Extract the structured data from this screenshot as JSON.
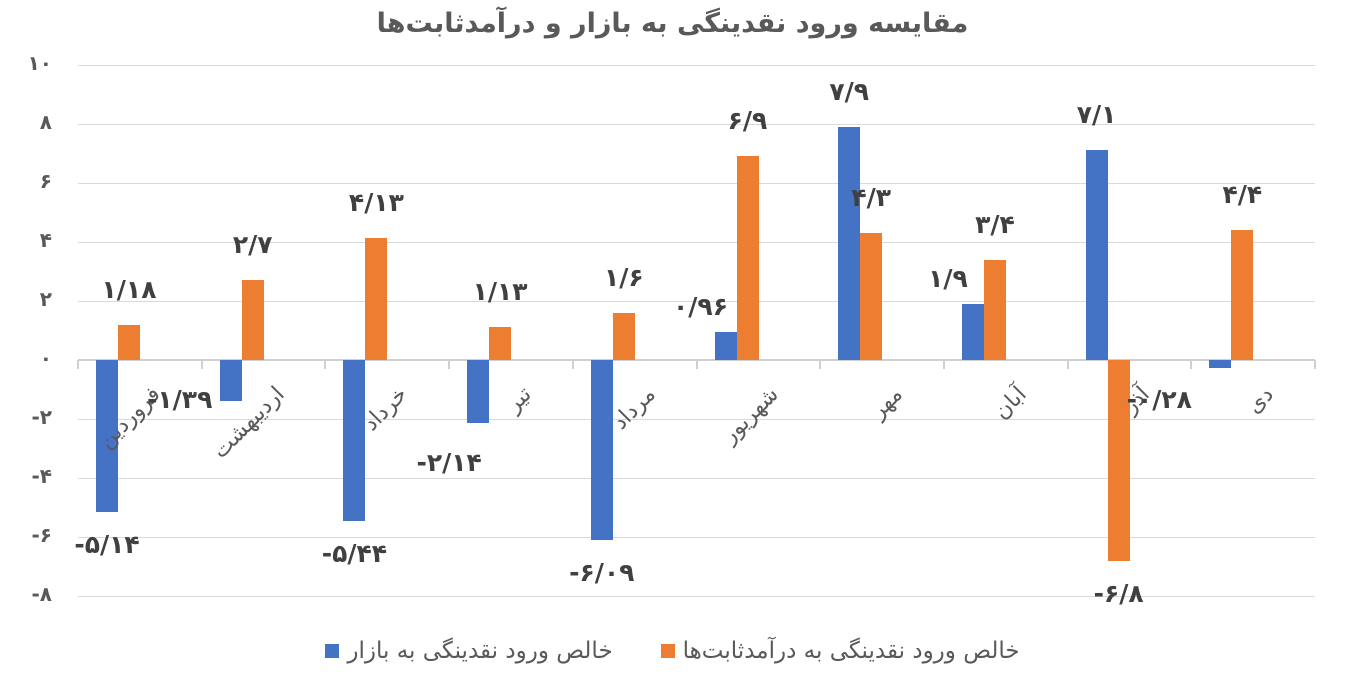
{
  "title": "مقایسه ورود نقدینگی به بازار و درآمدثابت‌ها",
  "y_axis": {
    "ticks": [
      {
        "value": 10,
        "label": "۱۰"
      },
      {
        "value": 8,
        "label": "۸"
      },
      {
        "value": 6,
        "label": "۶"
      },
      {
        "value": 4,
        "label": "۴"
      },
      {
        "value": 2,
        "label": "۲"
      },
      {
        "value": 0,
        "label": "۰"
      },
      {
        "value": -2,
        "label": "-۲"
      },
      {
        "value": -4,
        "label": "-۴"
      },
      {
        "value": -6,
        "label": "-۶"
      },
      {
        "value": -8,
        "label": "-۸"
      }
    ]
  },
  "legend": {
    "items": [
      {
        "label": "خالص ورود نقدینگی به بازار",
        "color": "#4472C4"
      },
      {
        "label": "خالص ورود نقدینگی به درآمدثابت‌ها",
        "color": "#ED7D31"
      }
    ]
  },
  "colors": {
    "series1": "#4472C4",
    "series2": "#ED7D31",
    "text": "#595959",
    "grid": "#d9d9d9"
  },
  "chart_data": {
    "type": "bar",
    "title": "مقایسه ورود نقدینگی به بازار و درآمدثابت‌ها",
    "xlabel": "",
    "ylabel": "",
    "ylim": [
      -8,
      10
    ],
    "grid": true,
    "legend_position": "bottom",
    "categories": [
      "فروردین",
      "اردیبهشت",
      "خرداد",
      "تیر",
      "مرداد",
      "شهریور",
      "مهر",
      "آبان",
      "آذر",
      "دی"
    ],
    "series": [
      {
        "name": "خالص ورود نقدینگی به بازار",
        "color": "#4472C4",
        "values": [
          -5.14,
          -1.39,
          -5.44,
          -2.14,
          -6.09,
          0.96,
          7.9,
          1.9,
          7.1,
          -0.28
        ],
        "labels": [
          "-۵/۱۴",
          "-۱/۳۹",
          "-۵/۴۴",
          "-۲/۱۴",
          "-۶/۰۹",
          "۰/۹۶",
          "۷/۹",
          "۱/۹",
          "۷/۱",
          "-۰/۲۸"
        ]
      },
      {
        "name": "خالص ورود نقدینگی به درآمدثابت‌ها",
        "color": "#ED7D31",
        "values": [
          1.18,
          2.7,
          4.13,
          1.13,
          1.6,
          6.9,
          4.3,
          3.4,
          -6.8,
          4.4
        ],
        "labels": [
          "۱/۱۸",
          "۲/۷",
          "۴/۱۳",
          "۱/۱۳",
          "۱/۶",
          "۶/۹",
          "۴/۳",
          "۳/۴",
          "-۶/۸",
          "۴/۴"
        ]
      }
    ]
  }
}
